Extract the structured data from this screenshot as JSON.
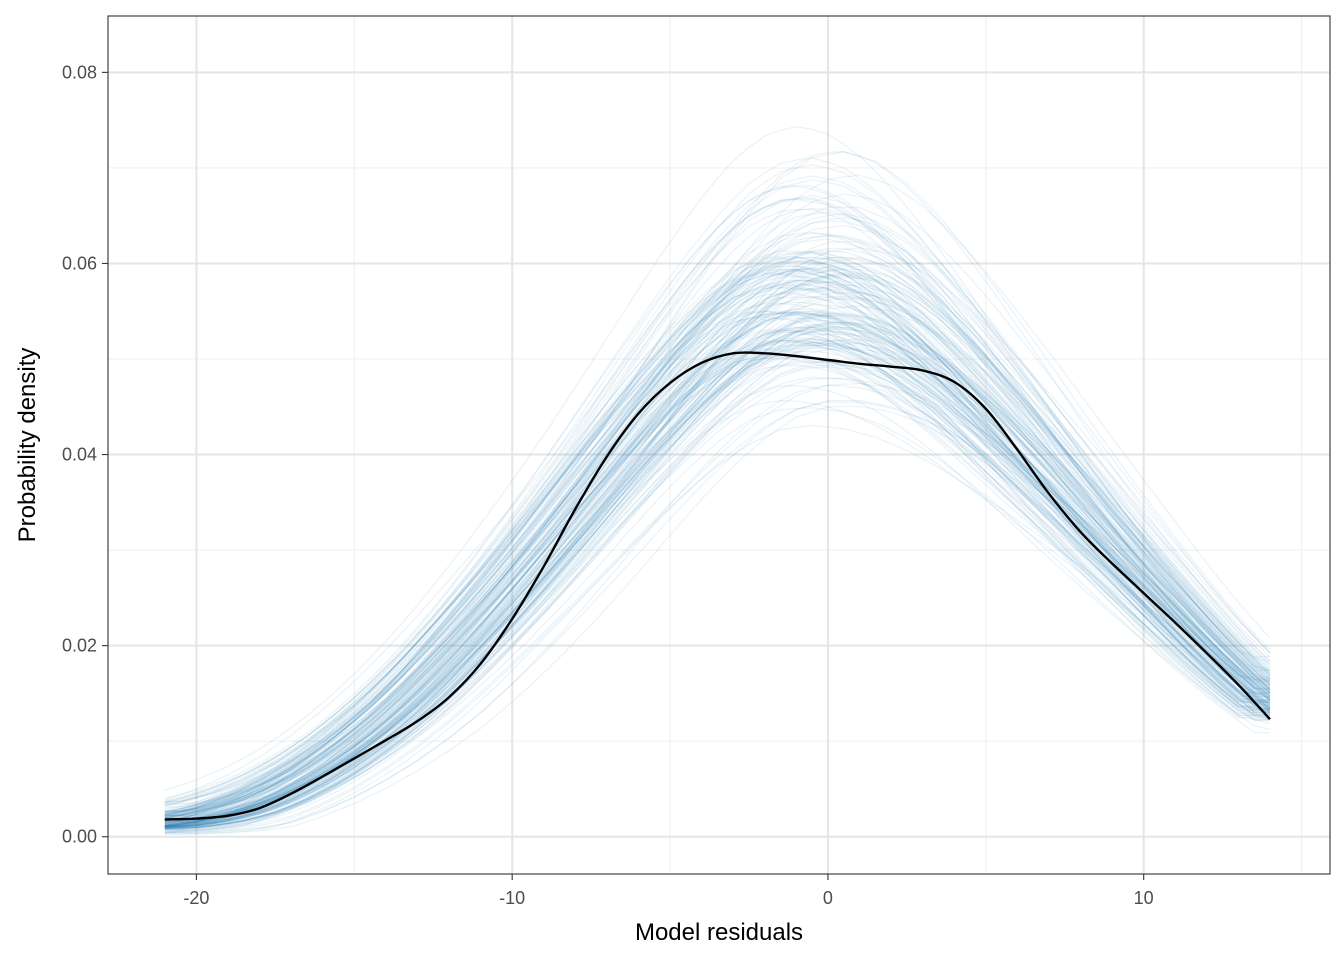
{
  "chart_data": {
    "type": "line",
    "xlabel": "Model residuals",
    "ylabel": "Probability density",
    "xlim": [
      -22.8,
      15.9
    ],
    "ylim": [
      -0.0039,
      0.0859
    ],
    "x_ticks": [
      -20,
      -10,
      0,
      10
    ],
    "x_tick_labels": [
      "-20",
      "-10",
      "0",
      "10"
    ],
    "y_ticks": [
      0.0,
      0.02,
      0.04,
      0.06,
      0.08
    ],
    "y_tick_labels": [
      "0.00",
      "0.02",
      "0.04",
      "0.06",
      "0.08"
    ],
    "x_range": [
      -21,
      14
    ],
    "grid": true,
    "legend": "none",
    "colors": {
      "simulated": "#1f78b4",
      "observed": "#000000",
      "grid_major": "#e5e5e5",
      "grid_minor": "#f0f0f0",
      "frame": "#333333"
    },
    "series": [
      {
        "x": [
          -21,
          -20,
          -19,
          -18,
          -17,
          -16,
          -15,
          -14,
          -13,
          -12,
          -11,
          -10,
          -9,
          -8,
          -7,
          -6,
          -5,
          -4,
          -3,
          -2,
          -1,
          0,
          1,
          2,
          3,
          4,
          5,
          6,
          7,
          8,
          9,
          10,
          11,
          12,
          13,
          14
        ],
        "values": [
          0.0018,
          0.0019,
          0.0022,
          0.003,
          0.0045,
          0.0063,
          0.0082,
          0.0101,
          0.0121,
          0.0146,
          0.0181,
          0.0228,
          0.0283,
          0.0343,
          0.0398,
          0.0443,
          0.0475,
          0.0496,
          0.0506,
          0.0506,
          0.0503,
          0.0499,
          0.0495,
          0.0492,
          0.0488,
          0.0476,
          0.0448,
          0.0405,
          0.0359,
          0.0319,
          0.0286,
          0.0255,
          0.0224,
          0.0192,
          0.0159,
          0.0123
        ]
      }
    ],
    "simulated_band": {
      "x": [
        -21,
        -20,
        -19,
        -18,
        -17,
        -16,
        -15,
        -14,
        -13,
        -12,
        -11,
        -10,
        -9,
        -8,
        -7,
        -6,
        -5,
        -4,
        -3,
        -2,
        -1,
        0,
        1,
        2,
        3,
        4,
        5,
        6,
        7,
        8,
        9,
        10,
        11,
        12,
        13,
        14
      ],
      "center": [
        0.0012,
        0.0017,
        0.0025,
        0.0037,
        0.0053,
        0.0073,
        0.0097,
        0.0124,
        0.0155,
        0.019,
        0.0226,
        0.0263,
        0.0302,
        0.0342,
        0.0382,
        0.0421,
        0.0459,
        0.0494,
        0.0524,
        0.0547,
        0.0557,
        0.0557,
        0.0549,
        0.0532,
        0.0508,
        0.0479,
        0.0446,
        0.0411,
        0.0376,
        0.034,
        0.0304,
        0.0268,
        0.0232,
        0.0197,
        0.0165,
        0.0135
      ],
      "low": [
        0.0,
        0.0,
        0.0,
        0.0002,
        0.0012,
        0.0024,
        0.0039,
        0.0056,
        0.0076,
        0.0098,
        0.0125,
        0.0155,
        0.0187,
        0.0221,
        0.0256,
        0.0292,
        0.0325,
        0.0355,
        0.038,
        0.0398,
        0.0405,
        0.0403,
        0.0396,
        0.0384,
        0.0368,
        0.0348,
        0.0326,
        0.0303,
        0.0278,
        0.0253,
        0.0227,
        0.0202,
        0.0176,
        0.0151,
        0.0127,
        0.0105
      ],
      "high": [
        0.0045,
        0.0054,
        0.0066,
        0.0081,
        0.01,
        0.0123,
        0.015,
        0.0181,
        0.0216,
        0.0254,
        0.0296,
        0.0341,
        0.0387,
        0.0436,
        0.0488,
        0.0542,
        0.0596,
        0.0648,
        0.0696,
        0.0736,
        0.0762,
        0.077,
        0.0759,
        0.0733,
        0.0696,
        0.0652,
        0.0604,
        0.0554,
        0.0503,
        0.0452,
        0.0403,
        0.0356,
        0.031,
        0.0267,
        0.0228,
        0.0193
      ]
    }
  }
}
